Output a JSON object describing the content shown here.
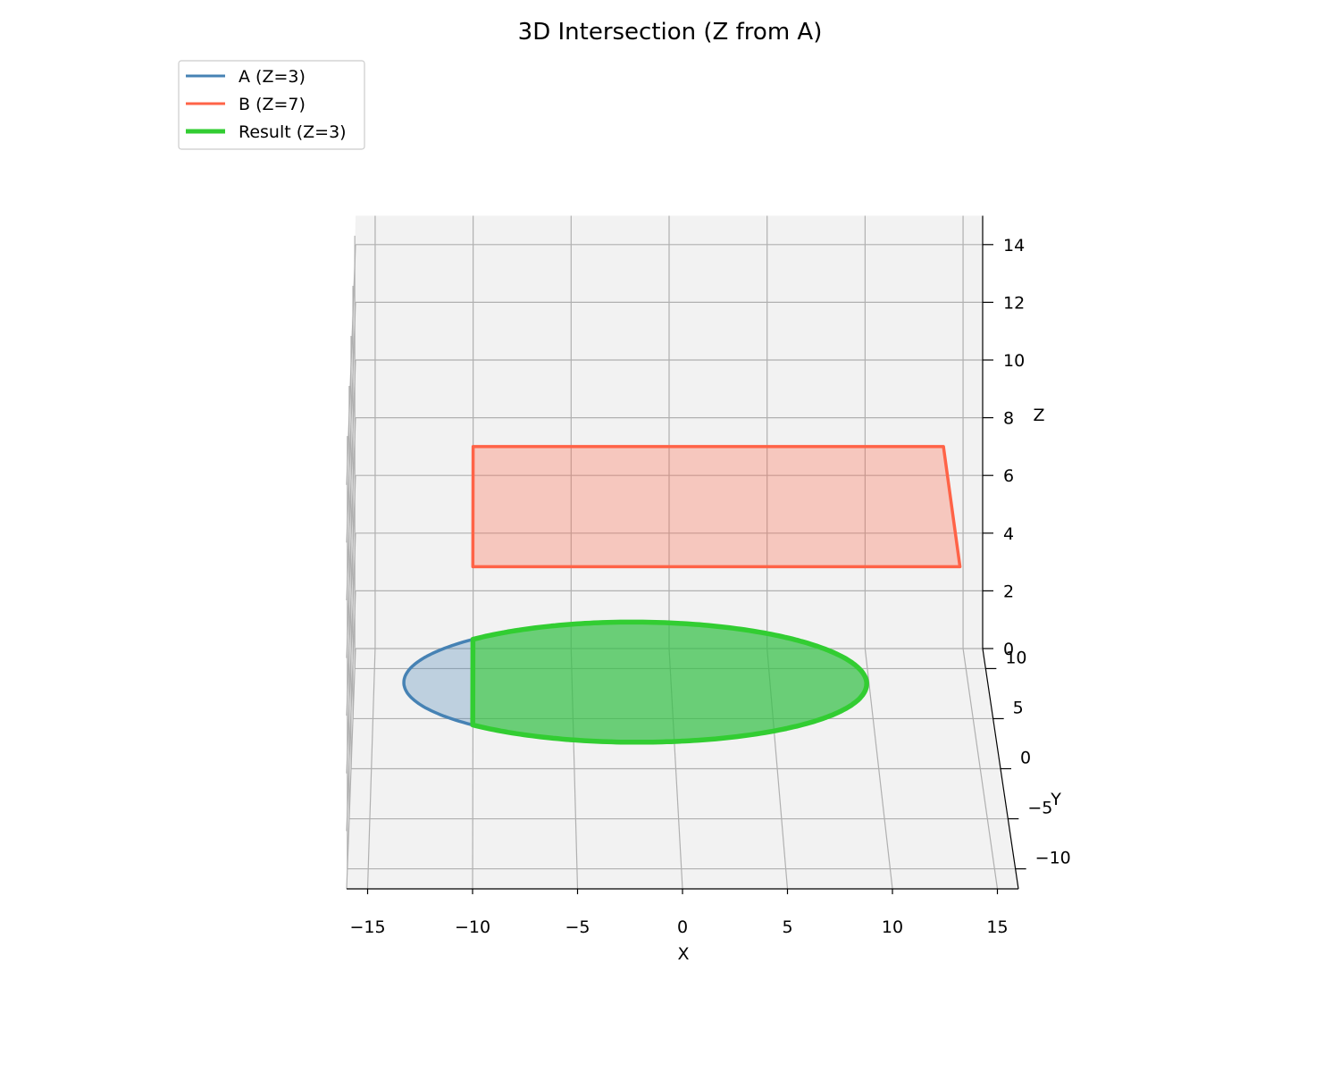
{
  "chart_data": {
    "type": "3d-polygon-plot",
    "title": "3D Intersection (Z from A)",
    "xlabel": "X",
    "ylabel": "Y",
    "zlabel": "Z",
    "xlim": [
      -16,
      16
    ],
    "ylim": [
      -12,
      12
    ],
    "zlim": [
      0,
      15
    ],
    "xticks": [
      -15,
      -10,
      -5,
      0,
      5,
      10,
      15
    ],
    "yticks": [
      -10,
      -5,
      0,
      5,
      10
    ],
    "zticks": [
      0,
      2,
      4,
      6,
      8,
      10,
      12,
      14
    ],
    "tick_labels": {
      "x": [
        "−15",
        "−10",
        "−5",
        "0",
        "5",
        "10",
        "15"
      ],
      "y": [
        "−10",
        "−5",
        "0",
        "5",
        "10"
      ],
      "z": [
        "0",
        "2",
        "4",
        "6",
        "8",
        "10",
        "12",
        "14"
      ]
    },
    "grid": true,
    "legend_position": "top-left",
    "series": [
      {
        "name": "A (Z=3)",
        "shape": "ellipse",
        "center": [
          -2,
          0
        ],
        "radii": [
          11.4,
          6
        ],
        "z": 3,
        "color": "#4682b4"
      },
      {
        "name": "B (Z=7)",
        "shape": "rectangle",
        "x_range": [
          -10,
          14
        ],
        "y_range": [
          0,
          12
        ],
        "z": 7,
        "color": "#ff6347"
      },
      {
        "name": "Result (Z=3)",
        "shape": "ellipse ∩ rectangle",
        "description_values": {
          "x_min": -10
        },
        "z": 3,
        "color": "#32cd32"
      }
    ]
  }
}
